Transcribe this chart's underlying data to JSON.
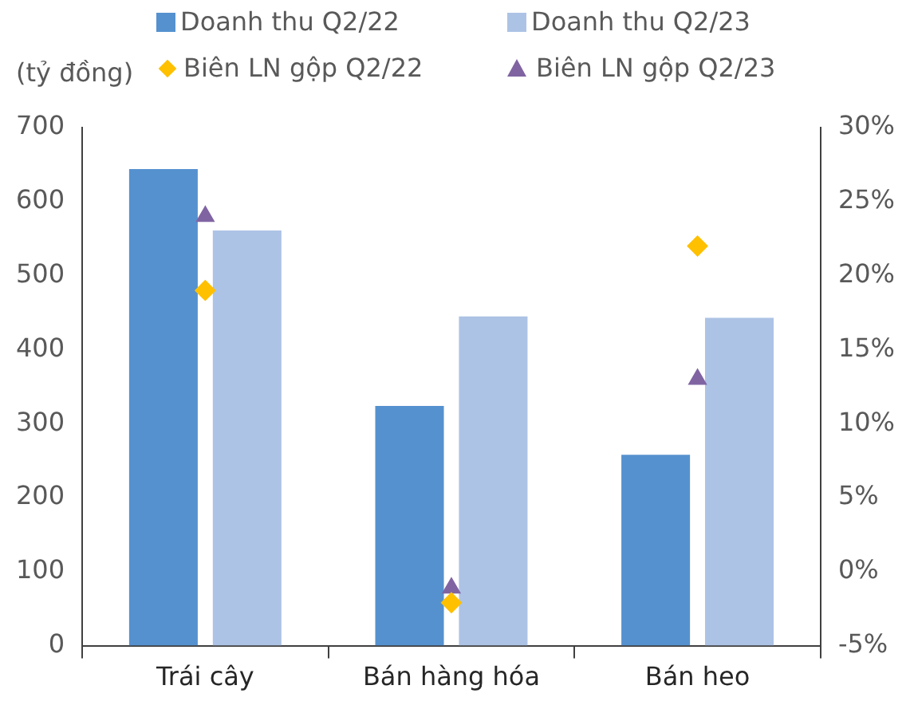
{
  "chart_data": {
    "type": "bar",
    "ylabel": "(tỷ đồng)",
    "categories": [
      "Trái cây",
      "Bán hàng hóa",
      "Bán heo"
    ],
    "series": [
      {
        "name": "Doanh thu Q2/22",
        "color": "#5591cf",
        "values": [
          644,
          324,
          258
        ]
      },
      {
        "name": "Doanh thu Q2/23",
        "color": "#adc3e5",
        "values": [
          561,
          445,
          443
        ]
      },
      {
        "name": "Biên LN gộp Q2/22",
        "type": "scatter",
        "axis": "y2",
        "marker": "diamond",
        "color": "#ffc000",
        "x": [
          "Trái cây",
          "Bán hàng hóa",
          "Bán heo"
        ],
        "values": [
          19,
          -2.1,
          22
        ]
      },
      {
        "name": "Biên LN gộp Q2/23",
        "type": "scatter",
        "axis": "y2",
        "marker": "triangle",
        "color": "#8064a2",
        "x": [
          "Trái cây",
          "Bán hàng hóa",
          "Bán heo"
        ],
        "values": [
          24,
          -1.1,
          13
        ]
      }
    ],
    "ylim": [
      0,
      700
    ],
    "yticks": [
      0,
      100,
      200,
      300,
      400,
      500,
      600,
      700
    ],
    "y2lim": [
      -5,
      30
    ],
    "y2ticks": [
      {
        "value": -5,
        "label": "-5%"
      },
      {
        "value": 0,
        "label": "0%"
      },
      {
        "value": 5,
        "label": "5%"
      },
      {
        "value": 10,
        "label": "10%"
      },
      {
        "value": 15,
        "label": "15%"
      },
      {
        "value": 20,
        "label": "20%"
      },
      {
        "value": 25,
        "label": "25%"
      },
      {
        "value": 30,
        "label": "30%"
      }
    ],
    "grid": false,
    "legend": "top"
  }
}
